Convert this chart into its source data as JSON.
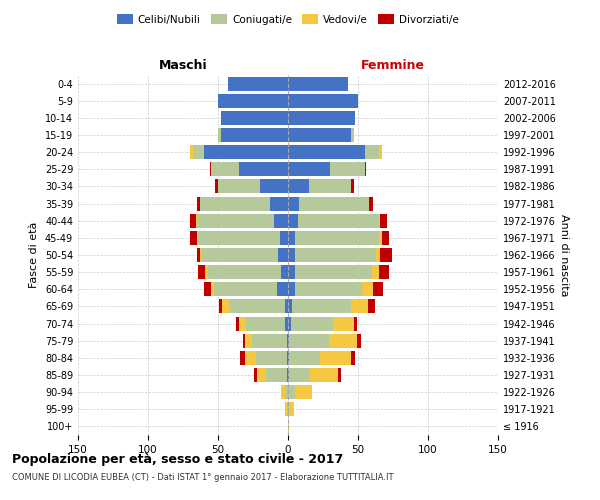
{
  "age_groups": [
    "100+",
    "95-99",
    "90-94",
    "85-89",
    "80-84",
    "75-79",
    "70-74",
    "65-69",
    "60-64",
    "55-59",
    "50-54",
    "45-49",
    "40-44",
    "35-39",
    "30-34",
    "25-29",
    "20-24",
    "15-19",
    "10-14",
    "5-9",
    "0-4"
  ],
  "birth_years": [
    "≤ 1916",
    "1917-1921",
    "1922-1926",
    "1927-1931",
    "1932-1936",
    "1937-1941",
    "1942-1946",
    "1947-1951",
    "1952-1956",
    "1957-1961",
    "1962-1966",
    "1967-1971",
    "1972-1976",
    "1977-1981",
    "1982-1986",
    "1987-1991",
    "1992-1996",
    "1997-2001",
    "2002-2006",
    "2007-2011",
    "2012-2016"
  ],
  "male": {
    "celibi": [
      0,
      0,
      0,
      1,
      1,
      1,
      2,
      2,
      8,
      5,
      7,
      6,
      10,
      13,
      20,
      35,
      60,
      48,
      48,
      50,
      43
    ],
    "coniugati": [
      0,
      1,
      2,
      15,
      22,
      25,
      28,
      40,
      45,
      52,
      55,
      58,
      55,
      50,
      30,
      20,
      8,
      2,
      0,
      0,
      0
    ],
    "vedovi": [
      0,
      1,
      3,
      6,
      8,
      5,
      5,
      5,
      2,
      2,
      1,
      1,
      1,
      0,
      0,
      0,
      2,
      0,
      0,
      0,
      0
    ],
    "divorziati": [
      0,
      0,
      0,
      2,
      3,
      1,
      2,
      2,
      5,
      5,
      2,
      5,
      4,
      2,
      2,
      1,
      0,
      0,
      0,
      0,
      0
    ]
  },
  "female": {
    "nubili": [
      0,
      0,
      0,
      1,
      1,
      1,
      2,
      3,
      5,
      5,
      5,
      5,
      7,
      8,
      15,
      30,
      55,
      45,
      48,
      50,
      43
    ],
    "coniugate": [
      0,
      1,
      5,
      15,
      22,
      28,
      30,
      42,
      48,
      55,
      58,
      60,
      58,
      50,
      30,
      25,
      10,
      2,
      0,
      0,
      0
    ],
    "vedove": [
      1,
      3,
      12,
      20,
      22,
      20,
      15,
      12,
      8,
      5,
      3,
      2,
      1,
      0,
      0,
      0,
      2,
      0,
      0,
      0,
      0
    ],
    "divorziate": [
      0,
      0,
      0,
      2,
      3,
      3,
      2,
      5,
      7,
      7,
      8,
      5,
      5,
      3,
      2,
      1,
      0,
      0,
      0,
      0,
      0
    ]
  },
  "color_celibi": "#4472c4",
  "color_coniugati": "#b5c99a",
  "color_vedovi": "#f5c842",
  "color_divorziati": "#c00000",
  "xlim": 150,
  "title": "Popolazione per età, sesso e stato civile - 2017",
  "subtitle": "COMUNE DI LICODIA EUBEA (CT) - Dati ISTAT 1° gennaio 2017 - Elaborazione TUTTITALIA.IT",
  "xlabel_left": "Maschi",
  "xlabel_right": "Femmine",
  "ylabel_left": "Fasce di età",
  "ylabel_right": "Anni di nascita"
}
